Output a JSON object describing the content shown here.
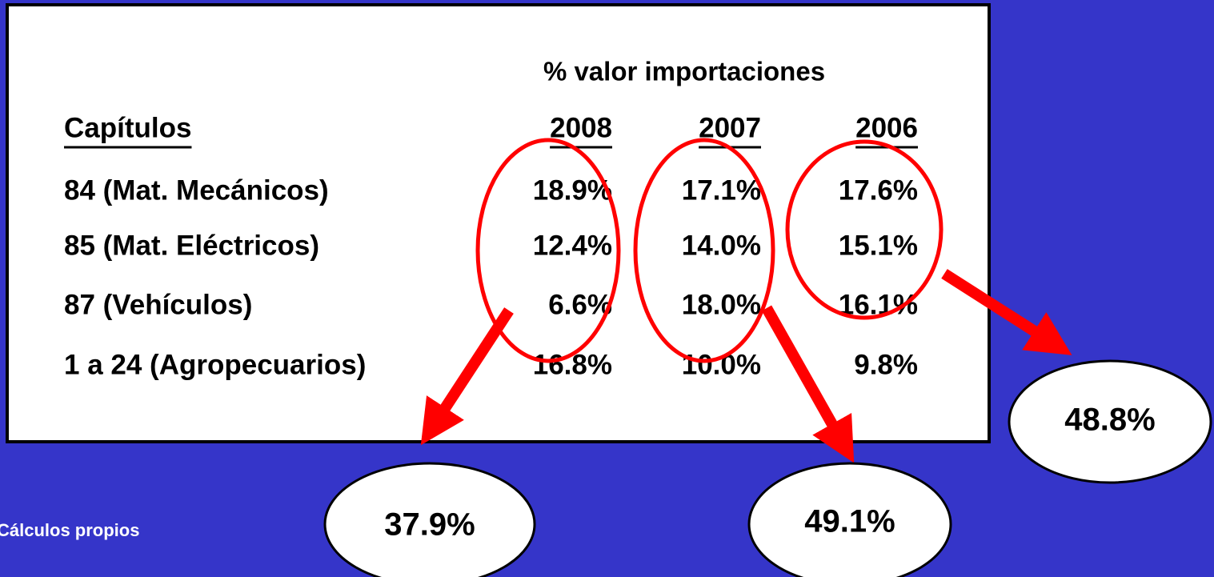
{
  "title": "% valor importaciones",
  "table": {
    "header": [
      "Capítulos",
      "2008",
      "2007",
      "2006"
    ],
    "rows": [
      [
        "84 (Mat. Mecánicos)",
        "18.9%",
        "17.1%",
        "17.6%"
      ],
      [
        "85 (Mat. Eléctricos)",
        "12.4%",
        "14.0%",
        "15.1%"
      ],
      [
        "87 (Vehículos)",
        "6.6%",
        "18.0%",
        "16.1%"
      ],
      [
        "1 a 24 (Agropecuarios)",
        "16.8%",
        "10.0%",
        "9.8%"
      ]
    ]
  },
  "totals": [
    "37.9%",
    "49.1%",
    "48.8%"
  ],
  "source": "Cálculos propios"
}
